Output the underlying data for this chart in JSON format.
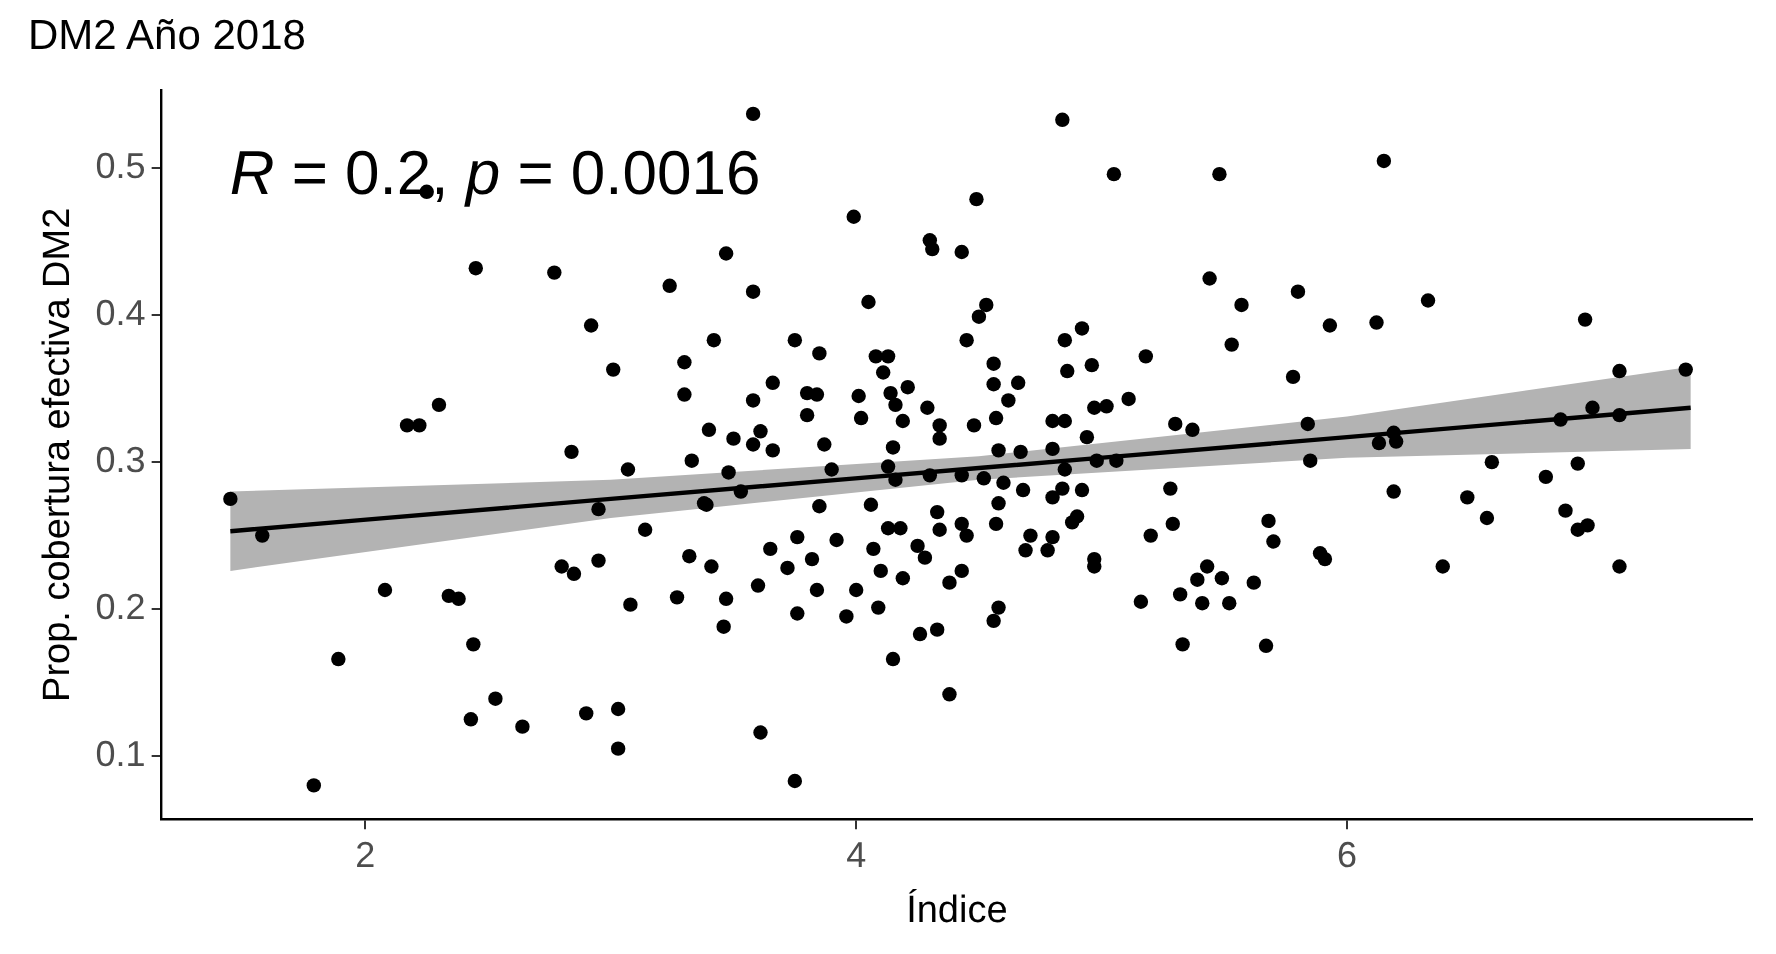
{
  "chart_data": {
    "type": "scatter",
    "title": "DM2 Año 2018",
    "xlabel": "Índice",
    "ylabel": "Prop. cobertura efectiva DM2",
    "annotations": [
      "R = 0.2, p = 0.0016"
    ],
    "xlim": [
      1.17,
      7.65
    ],
    "xticks": [
      2,
      4,
      6
    ],
    "ylim": [
      0.057,
      0.553
    ],
    "yticks": [
      0.1,
      0.2,
      0.3,
      0.4,
      0.5
    ],
    "grid": false,
    "legend": false,
    "series": [
      {
        "marker": "circle",
        "color": "#000000",
        "x": [
          1.45,
          1.58,
          1.89,
          1.79,
          2.08,
          2.17,
          2.22,
          2.3,
          2.25,
          2.45,
          2.34,
          2.38,
          2.44,
          2.43,
          2.53,
          2.64,
          2.77,
          2.8,
          2.85,
          2.9,
          2.92,
          2.95,
          2.95,
          2.84,
          3.03,
          3.03,
          3.01,
          3.07,
          3.08,
          3.14,
          3.24,
          3.27,
          3.3,
          3.3,
          3.32,
          3.33,
          3.38,
          3.58,
          3.47,
          3.42,
          3.4,
          3.5,
          3.61,
          3.58,
          3.66,
          3.58,
          3.66,
          3.75,
          3.8,
          3.84,
          3.85,
          3.8,
          3.87,
          3.58,
          3.99,
          4.05,
          4.01,
          4.02,
          4.08,
          4.13,
          4.11,
          4.14,
          4.16,
          4.19,
          4.15,
          4.21,
          4.29,
          4.3,
          4.31,
          4.43,
          4.45,
          4.34,
          4.34,
          4.48,
          4.49,
          4.5,
          4.53,
          4.56,
          4.56,
          4.57,
          4.58,
          4.62,
          4.66,
          4.67,
          4.8,
          4.8,
          4.85,
          4.85,
          4.84,
          4.86,
          4.92,
          4.94,
          4.96,
          4.97,
          5.02,
          5.05,
          5.11,
          5.18,
          5.3,
          5.37,
          5.44,
          5.48,
          3.41,
          3.47,
          3.46,
          3.6,
          3.61,
          3.75,
          3.65,
          3.72,
          3.76,
          3.76,
          3.82,
          3.84,
          3.85,
          3.92,
          3.96,
          4.0,
          4.06,
          4.09,
          4.07,
          4.1,
          4.13,
          4.15,
          4.18,
          4.19,
          4.25,
          4.26,
          4.28,
          4.33,
          4.33,
          4.34,
          4.38,
          4.38,
          4.43,
          4.43,
          4.45,
          4.56,
          4.58,
          4.57,
          4.58,
          4.6,
          4.68,
          4.69,
          4.71,
          4.78,
          4.8,
          4.8,
          4.84,
          4.88,
          4.9,
          4.92,
          4.97,
          4.97,
          5.16,
          5.2,
          5.29,
          5.28,
          5.32,
          5.39,
          5.41,
          5.43,
          5.49,
          5.52,
          3.48,
          3.53,
          3.39,
          3.9,
          4.13,
          4.16,
          4.3,
          4.43,
          4.52,
          4.85,
          4.98,
          5.06,
          6.15,
          5.8,
          5.57,
          5.93,
          6.12,
          6.33,
          6.97,
          5.53,
          5.78,
          7.11,
          7.38,
          7.0,
          7.11,
          6.87,
          5.84,
          6.13,
          6.19,
          6.2,
          5.85,
          6.59,
          6.94,
          6.19,
          6.49,
          6.57,
          6.39,
          6.81,
          6.89,
          6.94,
          6.98,
          5.7,
          5.62,
          5.89,
          5.91,
          7.11,
          5.67,
          5.33,
          5.68
        ],
        "values": [
          0.275,
          0.25,
          0.166,
          0.08,
          0.213,
          0.325,
          0.325,
          0.339,
          0.484,
          0.432,
          0.209,
          0.207,
          0.176,
          0.125,
          0.139,
          0.12,
          0.429,
          0.229,
          0.224,
          0.129,
          0.393,
          0.268,
          0.233,
          0.307,
          0.132,
          0.105,
          0.363,
          0.295,
          0.203,
          0.254,
          0.42,
          0.208,
          0.368,
          0.346,
          0.236,
          0.301,
          0.272,
          0.537,
          0.442,
          0.383,
          0.322,
          0.316,
          0.321,
          0.312,
          0.308,
          0.342,
          0.354,
          0.383,
          0.347,
          0.346,
          0.374,
          0.332,
          0.312,
          0.416,
          0.467,
          0.409,
          0.345,
          0.33,
          0.372,
          0.372,
          0.361,
          0.347,
          0.339,
          0.328,
          0.31,
          0.351,
          0.337,
          0.451,
          0.445,
          0.443,
          0.383,
          0.325,
          0.316,
          0.325,
          0.479,
          0.399,
          0.407,
          0.367,
          0.353,
          0.33,
          0.308,
          0.342,
          0.354,
          0.307,
          0.309,
          0.328,
          0.328,
          0.383,
          0.533,
          0.362,
          0.391,
          0.317,
          0.366,
          0.337,
          0.338,
          0.496,
          0.343,
          0.372,
          0.326,
          0.322,
          0.425,
          0.496,
          0.229,
          0.207,
          0.188,
          0.216,
          0.116,
          0.083,
          0.241,
          0.228,
          0.249,
          0.197,
          0.234,
          0.213,
          0.27,
          0.247,
          0.195,
          0.213,
          0.271,
          0.201,
          0.241,
          0.226,
          0.255,
          0.166,
          0.255,
          0.221,
          0.243,
          0.183,
          0.235,
          0.266,
          0.186,
          0.254,
          0.142,
          0.218,
          0.258,
          0.226,
          0.25,
          0.192,
          0.201,
          0.258,
          0.272,
          0.286,
          0.281,
          0.24,
          0.25,
          0.24,
          0.249,
          0.276,
          0.282,
          0.259,
          0.263,
          0.281,
          0.234,
          0.229,
          0.205,
          0.25,
          0.258,
          0.282,
          0.21,
          0.22,
          0.204,
          0.229,
          0.221,
          0.204,
          0.293,
          0.28,
          0.271,
          0.295,
          0.297,
          0.288,
          0.291,
          0.291,
          0.289,
          0.295,
          0.301,
          0.301,
          0.505,
          0.416,
          0.407,
          0.393,
          0.395,
          0.41,
          0.397,
          0.38,
          0.358,
          0.362,
          0.363,
          0.337,
          0.332,
          0.329,
          0.326,
          0.313,
          0.32,
          0.314,
          0.301,
          0.3,
          0.299,
          0.28,
          0.276,
          0.262,
          0.229,
          0.29,
          0.267,
          0.254,
          0.257,
          0.246,
          0.218,
          0.238,
          0.234,
          0.229,
          0.175,
          0.176,
          0.26
        ]
      },
      {
        "type": "line",
        "color": "#000000",
        "line_style": "solid",
        "x": [
          1.45,
          3,
          4.5,
          6,
          7.4
        ],
        "values": [
          0.253,
          0.275,
          0.296,
          0.317,
          0.337
        ],
        "lower": [
          0.226,
          0.262,
          0.288,
          0.303,
          0.309
        ],
        "upper": [
          0.28,
          0.288,
          0.304,
          0.331,
          0.365
        ]
      }
    ]
  }
}
